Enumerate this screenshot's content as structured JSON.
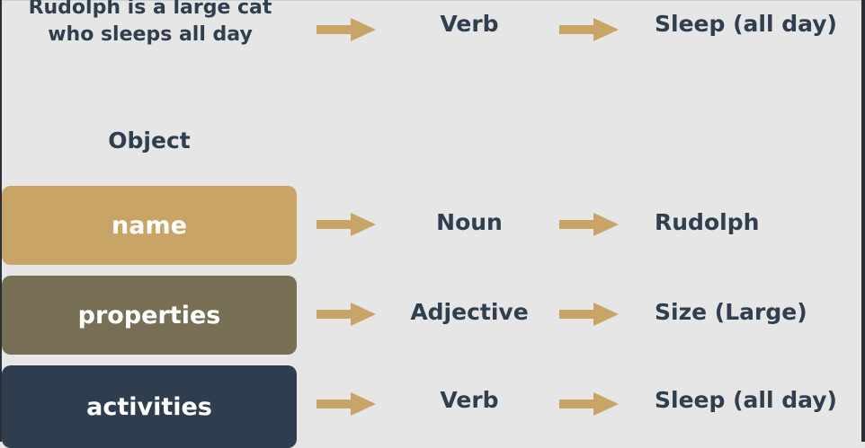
{
  "sentence": "Rudolph is a large cat who sleeps all day",
  "top_row": {
    "middle": "Verb",
    "right": "Sleep (all day)"
  },
  "object_title": "Object",
  "rows": [
    {
      "box": "name",
      "middle": "Noun",
      "right": "Rudolph"
    },
    {
      "box": "properties",
      "middle": "Adjective",
      "right": "Size (Large)"
    },
    {
      "box": "activities",
      "middle": "Verb",
      "right": "Sleep (all day)"
    }
  ],
  "colors": {
    "background": "#e6e6e6",
    "text": "#2f3f4f",
    "arrow": "#c9a467",
    "name_box": "#c9a467",
    "properties_box": "#787055",
    "activities_box": "#2f3e4e"
  }
}
